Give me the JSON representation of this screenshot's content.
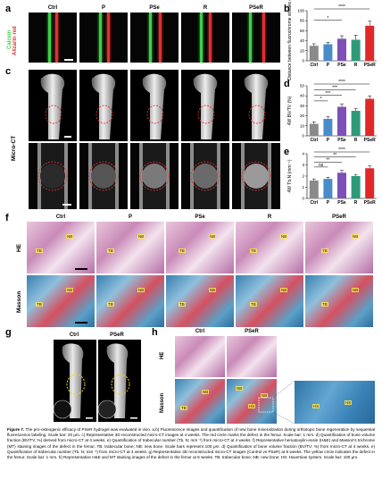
{
  "panel_letters": {
    "a": "a",
    "b": "b",
    "c": "c",
    "d": "d",
    "e": "e",
    "f": "f",
    "g": "g",
    "h": "h"
  },
  "groups": [
    "Ctrl",
    "P",
    "PSe",
    "R",
    "PSeR"
  ],
  "groups_gh": [
    "Ctrl",
    "PSeR"
  ],
  "row_labels": {
    "fluo_calcein": "Calcein",
    "fluo_alizarin": "Alizarin red",
    "microct": "Micro-CT",
    "he": "HE",
    "masson": "Masson"
  },
  "tissue_labels": {
    "tb": "TB",
    "nb": "NB",
    "hs": "HS"
  },
  "colors": {
    "ctrl": "#8a8a8a",
    "p": "#4a8cc8",
    "pse": "#7f4fb8",
    "r": "#2e9a7a",
    "pser": "#e02828",
    "calcein": "#3fd04a",
    "alizarin": "#e03030",
    "circle": "#e03030",
    "circle_g": "#f2d21a"
  },
  "chart_data": [
    {
      "type": "bar",
      "panel": "b",
      "categories": [
        "Ctrl",
        "P",
        "PSe",
        "R",
        "PSeR"
      ],
      "values": [
        30,
        33,
        44,
        42,
        70
      ],
      "errors": [
        4,
        4,
        6,
        9,
        9
      ],
      "ylabel": "Distance between fluorochrome streaks (μm)",
      "ylim": [
        0,
        100
      ],
      "yticks": [
        0,
        20,
        40,
        60,
        80,
        100
      ],
      "significance": [
        {
          "from": "Ctrl",
          "to": "PSe",
          "label": "*"
        },
        {
          "from": "Ctrl",
          "to": "PSeR",
          "label": "****"
        }
      ]
    },
    {
      "type": "bar",
      "panel": "d",
      "categories": [
        "Ctrl",
        "P",
        "PSe",
        "R",
        "PSeR"
      ],
      "values": [
        12,
        17,
        29,
        25,
        37
      ],
      "errors": [
        2,
        2,
        3,
        2,
        3
      ],
      "ylabel": "4W BV/TV (%)",
      "ylim": [
        0,
        50
      ],
      "yticks": [
        0,
        10,
        20,
        30,
        40,
        50
      ],
      "significance": [
        {
          "from": "Ctrl",
          "to": "P",
          "label": "*"
        },
        {
          "from": "Ctrl",
          "to": "PSe",
          "label": "***"
        },
        {
          "from": "Ctrl",
          "to": "R",
          "label": "***"
        },
        {
          "from": "Ctrl",
          "to": "PSeR",
          "label": "****"
        }
      ]
    },
    {
      "type": "bar",
      "panel": "e",
      "categories": [
        "Ctrl",
        "P",
        "PSe",
        "R",
        "PSeR"
      ],
      "values": [
        1.6,
        1.75,
        2.3,
        2.0,
        2.7
      ],
      "errors": [
        0.15,
        0.15,
        0.2,
        0.15,
        0.2
      ],
      "ylabel": "4W Tb.N (mm⁻¹)",
      "ylim": [
        0,
        4
      ],
      "yticks": [
        0,
        1,
        2,
        3,
        4
      ],
      "significance": [
        {
          "from": "Ctrl",
          "to": "P",
          "label": "ns"
        },
        {
          "from": "Ctrl",
          "to": "PSe",
          "label": "**"
        },
        {
          "from": "Ctrl",
          "to": "R",
          "label": "**"
        },
        {
          "from": "Ctrl",
          "to": "PSeR",
          "label": "****"
        }
      ]
    }
  ],
  "caption": {
    "label": "Figure 7.",
    "text": "The pro-osteogenic efficacy of PSeR hydrogel was evaluated in vivo. a,b) Fluorescence images and quantification of new bone mineralization during orthotopic bone regeneration by sequential fluorescence labeling. Scale bar: 20 μm. c) Representative 3D reconstructed micro-CT images at 4 weeks. The red circle marks the defect in the femur. Scale bar: 1 mm. d) Quantification of bone volume fraction (BV/TV; %) derived from micro-CT at 4 weeks. e) Quantification of trabecular number (Tb. N; mm⁻¹) from micro-CT at 4 weeks. f) Representative hematoxylin-eosin (H&E) and Masson's trichrome (MT) staining images of the defect in the femur. TB: trabecular bone; NB: new bone. Scale bars represent 100 μm. d) Quantification of bone volume fraction (BV/TV; %) from micro-CT at 4 weeks. e) Quantification of trabecular number (Tb. N; mm⁻¹) from micro-CT at 4 weeks. g) Representative 3D reconstructed micro-CT images (Control vs PSeR) at 8 weeks. The yellow circle indicates the defect in the femur. Scale bar: 1 mm. h) Representative H&E and MT staining images of the defect in the femur at 8 weeks. TB: trabecular bone; NB: new bone; HS: Haversian system. Scale bar: 100 μm."
  }
}
